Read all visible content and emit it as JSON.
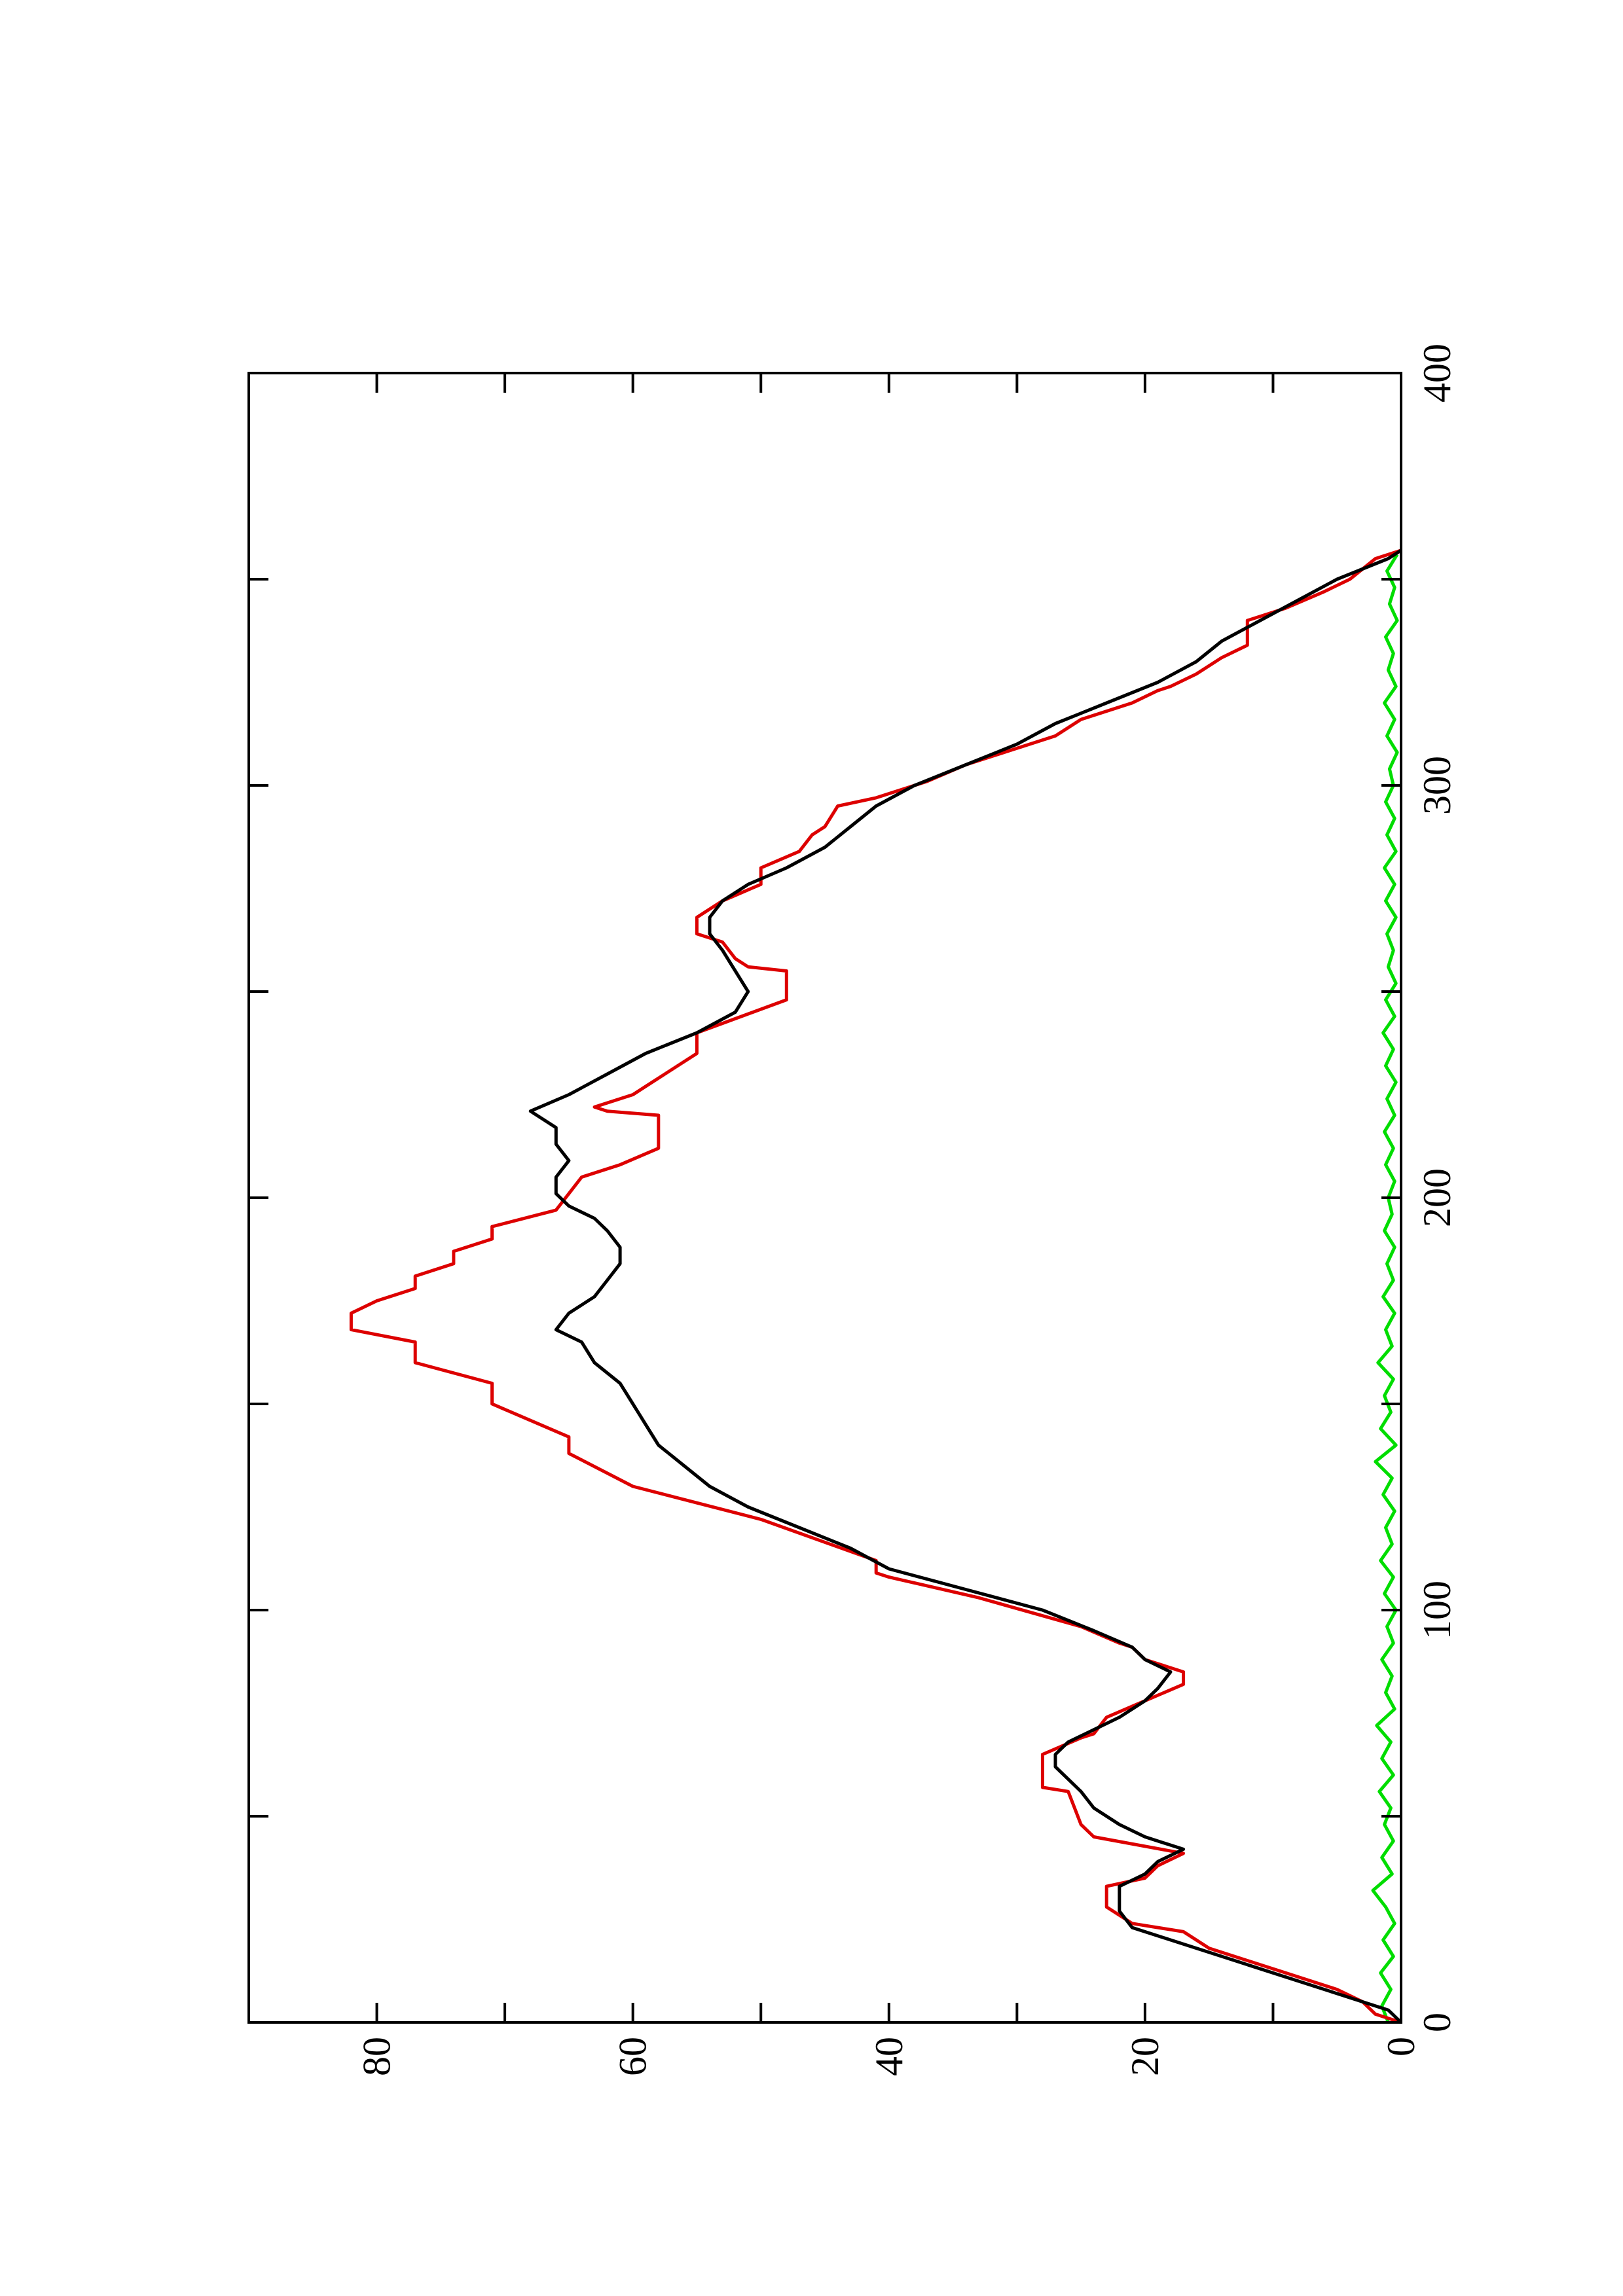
{
  "chart_data": {
    "type": "line",
    "orientation": "rotated-90-ccw",
    "x_ticks": [
      0,
      100,
      200,
      300,
      400
    ],
    "y_ticks": [
      0,
      20,
      40,
      60,
      80
    ],
    "xlim": [
      0,
      400
    ],
    "ylim": [
      0,
      90
    ],
    "grid": false,
    "colors": {
      "red_series": "#dd0000",
      "black_series": "#000000",
      "green_series": "#00dd00"
    },
    "series": [
      {
        "color": "#dd0000",
        "points": [
          [
            0,
            0
          ],
          [
            2,
            2
          ],
          [
            5,
            3
          ],
          [
            8,
            5
          ],
          [
            12,
            9
          ],
          [
            15,
            12
          ],
          [
            18,
            15
          ],
          [
            22,
            17
          ],
          [
            24,
            21
          ],
          [
            28,
            23
          ],
          [
            33,
            23
          ],
          [
            35,
            20
          ],
          [
            38,
            19
          ],
          [
            41,
            17
          ],
          [
            45,
            24
          ],
          [
            48,
            25
          ],
          [
            56,
            26
          ],
          [
            57,
            28
          ],
          [
            65,
            28
          ],
          [
            69,
            25
          ],
          [
            70,
            24
          ],
          [
            74,
            23
          ],
          [
            78,
            20
          ],
          [
            82,
            17
          ],
          [
            85,
            17
          ],
          [
            88,
            20
          ],
          [
            91,
            21
          ],
          [
            92,
            22
          ],
          [
            96,
            25
          ],
          [
            103,
            33
          ],
          [
            108,
            40
          ],
          [
            109,
            41
          ],
          [
            112,
            41
          ],
          [
            122,
            50
          ],
          [
            126,
            55
          ],
          [
            130,
            60
          ],
          [
            138,
            65
          ],
          [
            142,
            65
          ],
          [
            150,
            71
          ],
          [
            155,
            71
          ],
          [
            160,
            77
          ],
          [
            165,
            77
          ],
          [
            168,
            82
          ],
          [
            172,
            82
          ],
          [
            175,
            80
          ],
          [
            178,
            77
          ],
          [
            181,
            77
          ],
          [
            184,
            74
          ],
          [
            187,
            74
          ],
          [
            190,
            71
          ],
          [
            193,
            71
          ],
          [
            197,
            66
          ],
          [
            201,
            65
          ],
          [
            205,
            64
          ],
          [
            208,
            61
          ],
          [
            212,
            58
          ],
          [
            220,
            58
          ],
          [
            221,
            62
          ],
          [
            222,
            63
          ],
          [
            225,
            60
          ],
          [
            227,
            59
          ],
          [
            231,
            57
          ],
          [
            235,
            55
          ],
          [
            240,
            55
          ],
          [
            248,
            48
          ],
          [
            255,
            48
          ],
          [
            256,
            51
          ],
          [
            258,
            52
          ],
          [
            262,
            53
          ],
          [
            264,
            55
          ],
          [
            268,
            55
          ],
          [
            272,
            53
          ],
          [
            276,
            50
          ],
          [
            280,
            50
          ],
          [
            284,
            47
          ],
          [
            288,
            46
          ],
          [
            290,
            45
          ],
          [
            295,
            44
          ],
          [
            297,
            41
          ],
          [
            301,
            37
          ],
          [
            305,
            34
          ],
          [
            309,
            30
          ],
          [
            312,
            27
          ],
          [
            316,
            25
          ],
          [
            320,
            21
          ],
          [
            323,
            19
          ],
          [
            324,
            18
          ],
          [
            327,
            16
          ],
          [
            331,
            14
          ],
          [
            334,
            12
          ],
          [
            340,
            12
          ],
          [
            343,
            9
          ],
          [
            347,
            6
          ],
          [
            350,
            4
          ],
          [
            355,
            2
          ],
          [
            357,
            0
          ]
        ]
      },
      {
        "color": "#000000",
        "points": [
          [
            0,
            0
          ],
          [
            3,
            1
          ],
          [
            6,
            4
          ],
          [
            10,
            8
          ],
          [
            14,
            12
          ],
          [
            17,
            15
          ],
          [
            20,
            18
          ],
          [
            23,
            21
          ],
          [
            27,
            22
          ],
          [
            33,
            22
          ],
          [
            36,
            20
          ],
          [
            39,
            19
          ],
          [
            42,
            17
          ],
          [
            45,
            20
          ],
          [
            48,
            22
          ],
          [
            52,
            24
          ],
          [
            56,
            25
          ],
          [
            59,
            26
          ],
          [
            62,
            27
          ],
          [
            65,
            27
          ],
          [
            68,
            26
          ],
          [
            71,
            24
          ],
          [
            74,
            22
          ],
          [
            78,
            20
          ],
          [
            81,
            19
          ],
          [
            85,
            18
          ],
          [
            88,
            20
          ],
          [
            91,
            21
          ],
          [
            95,
            24
          ],
          [
            100,
            28
          ],
          [
            105,
            34
          ],
          [
            110,
            40
          ],
          [
            115,
            43
          ],
          [
            120,
            47
          ],
          [
            125,
            51
          ],
          [
            130,
            54
          ],
          [
            135,
            56
          ],
          [
            140,
            58
          ],
          [
            145,
            59
          ],
          [
            150,
            60
          ],
          [
            155,
            61
          ],
          [
            160,
            63
          ],
          [
            165,
            64
          ],
          [
            168,
            66
          ],
          [
            172,
            65
          ],
          [
            176,
            63
          ],
          [
            180,
            62
          ],
          [
            184,
            61
          ],
          [
            188,
            61
          ],
          [
            192,
            62
          ],
          [
            195,
            63
          ],
          [
            198,
            65
          ],
          [
            201,
            66
          ],
          [
            205,
            66
          ],
          [
            209,
            65
          ],
          [
            213,
            66
          ],
          [
            217,
            66
          ],
          [
            221,
            68
          ],
          [
            225,
            65
          ],
          [
            230,
            62
          ],
          [
            235,
            59
          ],
          [
            240,
            55
          ],
          [
            245,
            52
          ],
          [
            250,
            51
          ],
          [
            255,
            52
          ],
          [
            260,
            53
          ],
          [
            264,
            54
          ],
          [
            268,
            54
          ],
          [
            272,
            53
          ],
          [
            276,
            51
          ],
          [
            280,
            48
          ],
          [
            285,
            45
          ],
          [
            290,
            43
          ],
          [
            295,
            41
          ],
          [
            300,
            38
          ],
          [
            305,
            34
          ],
          [
            310,
            30
          ],
          [
            315,
            27
          ],
          [
            320,
            23
          ],
          [
            325,
            19
          ],
          [
            330,
            16
          ],
          [
            335,
            14
          ],
          [
            340,
            11
          ],
          [
            345,
            8
          ],
          [
            350,
            5
          ],
          [
            355,
            1
          ],
          [
            357,
            0
          ]
        ]
      },
      {
        "color": "#00dd00",
        "points": [
          [
            0,
            1
          ],
          [
            4,
            1.5
          ],
          [
            8,
            0.8
          ],
          [
            12,
            1.6
          ],
          [
            16,
            0.6
          ],
          [
            20,
            1.4
          ],
          [
            24,
            0.5
          ],
          [
            28,
            1.2
          ],
          [
            32,
            2.2
          ],
          [
            36,
            0.7
          ],
          [
            40,
            1.5
          ],
          [
            44,
            0.6
          ],
          [
            48,
            1.3
          ],
          [
            52,
            0.8
          ],
          [
            56,
            1.7
          ],
          [
            60,
            0.6
          ],
          [
            64,
            1.5
          ],
          [
            68,
            0.8
          ],
          [
            72,
            1.9
          ],
          [
            76,
            0.5
          ],
          [
            80,
            1.2
          ],
          [
            84,
            0.7
          ],
          [
            88,
            1.5
          ],
          [
            92,
            0.6
          ],
          [
            96,
            1.1
          ],
          [
            100,
            0.4
          ],
          [
            104,
            1.3
          ],
          [
            108,
            0.6
          ],
          [
            112,
            1.6
          ],
          [
            116,
            0.7
          ],
          [
            120,
            1.2
          ],
          [
            124,
            0.5
          ],
          [
            128,
            1.4
          ],
          [
            132,
            0.7
          ],
          [
            136,
            2
          ],
          [
            140,
            0.4
          ],
          [
            144,
            1.6
          ],
          [
            148,
            0.8
          ],
          [
            152,
            1.3
          ],
          [
            156,
            0.6
          ],
          [
            160,
            1.8
          ],
          [
            164,
            0.7
          ],
          [
            168,
            1.2
          ],
          [
            172,
            0.5
          ],
          [
            176,
            1.4
          ],
          [
            180,
            0.6
          ],
          [
            184,
            1.1
          ],
          [
            188,
            0.5
          ],
          [
            192,
            1.3
          ],
          [
            196,
            0.7
          ],
          [
            200,
            1
          ],
          [
            204,
            0.5
          ],
          [
            208,
            1.2
          ],
          [
            212,
            0.6
          ],
          [
            216,
            1.3
          ],
          [
            220,
            0.5
          ],
          [
            224,
            1.1
          ],
          [
            228,
            0.4
          ],
          [
            232,
            1.2
          ],
          [
            236,
            0.6
          ],
          [
            240,
            1.4
          ],
          [
            244,
            0.5
          ],
          [
            248,
            1.2
          ],
          [
            252,
            0.4
          ],
          [
            256,
            1
          ],
          [
            260,
            0.6
          ],
          [
            264,
            1.1
          ],
          [
            268,
            0.4
          ],
          [
            272,
            1.2
          ],
          [
            276,
            0.5
          ],
          [
            280,
            1.3
          ],
          [
            284,
            0.4
          ],
          [
            288,
            1.1
          ],
          [
            292,
            0.5
          ],
          [
            296,
            1.2
          ],
          [
            300,
            0.6
          ],
          [
            304,
            0.9
          ],
          [
            308,
            0.3
          ],
          [
            312,
            1.1
          ],
          [
            316,
            0.5
          ],
          [
            320,
            1.3
          ],
          [
            324,
            0.4
          ],
          [
            328,
            1
          ],
          [
            332,
            0.6
          ],
          [
            336,
            1.2
          ],
          [
            340,
            0.3
          ],
          [
            344,
            0.9
          ],
          [
            348,
            0.5
          ],
          [
            352,
            1.1
          ],
          [
            356,
            0.3
          ]
        ]
      }
    ]
  }
}
